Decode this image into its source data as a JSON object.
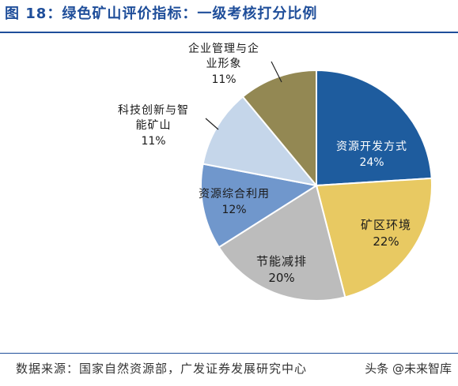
{
  "figure": {
    "title": "图 18：绿色矿山评价指标：一级考核打分比例",
    "source": "数据来源：国家自然资源部，广发证券发展研究中心",
    "watermark": "头条 @未来智库"
  },
  "chart_data": {
    "type": "pie",
    "title": "",
    "slices": [
      {
        "label": "资源开发方式",
        "value": 24,
        "value_label": "24%",
        "color": "#1e5c9e",
        "text_color": "#ffffff"
      },
      {
        "label": "矿区环境",
        "value": 22,
        "value_label": "22%",
        "color": "#e8c962",
        "text_color": "#1a1a1a"
      },
      {
        "label": "节能减排",
        "value": 20,
        "value_label": "20%",
        "color": "#bcbcbc",
        "text_color": "#1a1a1a"
      },
      {
        "label": "资源综合利用",
        "value": 12,
        "value_label": "12%",
        "color": "#7097cc",
        "text_color": "#1a1a1a"
      },
      {
        "label": "科技创新与智能矿山",
        "label_lines": [
          "科技创新与智",
          "能矿山"
        ],
        "value": 11,
        "value_label": "11%",
        "color": "#c5d6ea",
        "text_color": "#1a1a1a"
      },
      {
        "label": "企业管理与企业形象",
        "label_lines": [
          "企业管理与企",
          "业形象"
        ],
        "value": 11,
        "value_label": "11%",
        "color": "#938853",
        "text_color": "#1a1a1a"
      }
    ],
    "start_angle_deg": 0,
    "direction": "clockwise"
  }
}
